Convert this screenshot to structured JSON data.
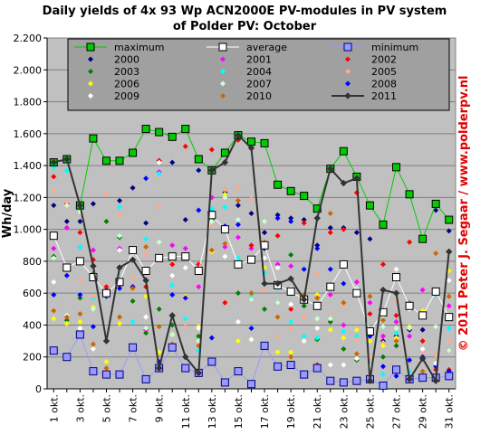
{
  "chart_data": {
    "type": "line",
    "title": "Daily yields of 4x 93 Wp ACN2000E PV-modules in PV system",
    "subtitle": "of Polder PV: October",
    "y_label": "Wh/day",
    "credit": "© 2011 Peter J. Segaar / www.polderpv.nl",
    "categories": [
      "1 okt.",
      null,
      "3 okt.",
      null,
      "5 okt.",
      null,
      "7 okt.",
      null,
      "9 okt.",
      null,
      "11 okt.",
      null,
      "13 okt.",
      null,
      "15 okt.",
      null,
      "17 okt.",
      null,
      "19 okt.",
      null,
      "21 okt.",
      null,
      "23 okt.",
      null,
      "25 okt.",
      null,
      "27 okt.",
      null,
      "29 okt.",
      null,
      "31 okt."
    ],
    "ylim": [
      0,
      2200
    ],
    "yticks": [
      0,
      {
        "value": 200,
        "label": "200"
      },
      {
        "value": 400,
        "label": "400"
      },
      {
        "value": 600,
        "label": "600"
      },
      {
        "value": 800,
        "label": "800"
      },
      {
        "value": 1000,
        "label": "1.000"
      },
      {
        "value": 1200,
        "label": "1.200"
      },
      {
        "value": 1400,
        "label": "1.400"
      },
      {
        "value": 1600,
        "label": "1.600"
      },
      {
        "value": 1800,
        "label": "1.800"
      },
      {
        "value": 2000,
        "label": "2.000"
      },
      {
        "value": 2200,
        "label": "2.200"
      }
    ],
    "grid": true,
    "plot_background": "#c0c0c0",
    "series": [
      {
        "name": "maximum",
        "color": "#00cc00",
        "line": true,
        "marker": "square",
        "values": [
          1420,
          1440,
          1150,
          1570,
          1430,
          1430,
          1480,
          1630,
          1610,
          1580,
          1630,
          1440,
          1370,
          1480,
          1590,
          1550,
          1540,
          1280,
          1240,
          1210,
          1130,
          1380,
          1490,
          1330,
          1150,
          1030,
          1390,
          1220,
          940,
          1160,
          1060
        ]
      },
      {
        "name": "average",
        "color": "#ffffff",
        "line": true,
        "marker": "square",
        "values": [
          960,
          760,
          800,
          700,
          600,
          670,
          870,
          740,
          820,
          830,
          830,
          740,
          1090,
          1000,
          780,
          810,
          900,
          650,
          610,
          560,
          520,
          640,
          780,
          600,
          360,
          480,
          700,
          520,
          460,
          610,
          450
        ]
      },
      {
        "name": "minimum",
        "color": "#9999ff",
        "line": true,
        "marker": "square",
        "values": [
          240,
          200,
          340,
          110,
          90,
          90,
          260,
          60,
          130,
          260,
          130,
          100,
          170,
          40,
          110,
          30,
          270,
          140,
          150,
          90,
          130,
          50,
          40,
          50,
          60,
          20,
          120,
          60,
          70,
          70,
          80
        ]
      },
      {
        "name": "2000",
        "color": "#000080",
        "line": false,
        "marker": "diamond",
        "values": [
          1150,
          1050,
          1050,
          1160,
          620,
          1180,
          1260,
          1040,
          1430,
          1420,
          1060,
          1370,
          1110,
          1230,
          1150,
          1100,
          980,
          1090,
          1070,
          1060,
          900,
          1010,
          1010,
          980,
          940,
          300,
          330,
          370,
          370,
          1120,
          990
        ]
      },
      {
        "name": "2001",
        "color": "#ff00ff",
        "line": false,
        "marker": "diamond",
        "values": [
          880,
          1010,
          890,
          870,
          600,
          880,
          880,
          370,
          1360,
          900,
          880,
          640,
          1200,
          890,
          950,
          880,
          880,
          780,
          770,
          520,
          510,
          590,
          400,
          670,
          540,
          330,
          420,
          330,
          620,
          610,
          520
        ]
      },
      {
        "name": "2002",
        "color": "#ff0000",
        "line": false,
        "marker": "diamond",
        "values": [
          1330,
          1160,
          980,
          810,
          640,
          650,
          640,
          640,
          1430,
          780,
          1520,
          780,
          1500,
          540,
          1560,
          900,
          880,
          960,
          500,
          1040,
          150,
          980,
          1000,
          1230,
          470,
          780,
          460,
          920,
          300,
          120,
          120
        ]
      },
      {
        "name": "2003",
        "color": "#008000",
        "line": false,
        "marker": "diamond",
        "values": [
          830,
          430,
          570,
          720,
          1050,
          950,
          550,
          350,
          500,
          400,
          200,
          330,
          1060,
          1250,
          600,
          560,
          500,
          540,
          840,
          520,
          310,
          420,
          250,
          180,
          80,
          200,
          270,
          530,
          480,
          600,
          240
        ]
      },
      {
        "name": "2004",
        "color": "#00ffff",
        "line": false,
        "marker": "diamond",
        "values": [
          1390,
          1370,
          890,
          570,
          590,
          1140,
          420,
          940,
          1350,
          650,
          440,
          240,
          1130,
          1140,
          820,
          590,
          730,
          630,
          420,
          330,
          320,
          450,
          360,
          330,
          200,
          90,
          350,
          110,
          460,
          590,
          380
        ]
      },
      {
        "name": "2005",
        "color": "#ffaa88",
        "line": false,
        "marker": "diamond",
        "values": [
          1240,
          1170,
          680,
          580,
          1220,
          1090,
          700,
          840,
          1140,
          810,
          390,
          380,
          1030,
          1250,
          1260,
          1190,
          620,
          330,
          380,
          450,
          720,
          460,
          520,
          310,
          200,
          290,
          550,
          380,
          230,
          210,
          300
        ]
      },
      {
        "name": "2006",
        "color": "#ffff00",
        "line": false,
        "marker": "diamond",
        "values": [
          440,
          410,
          420,
          510,
          170,
          410,
          630,
          580,
          230,
          340,
          580,
          390,
          860,
          1220,
          300,
          310,
          760,
          230,
          230,
          590,
          590,
          370,
          320,
          370,
          300,
          270,
          320,
          390,
          490,
          620,
          740
        ]
      },
      {
        "name": "2007",
        "color": "#ccffcc",
        "line": false,
        "marker": "diamond",
        "values": [
          820,
          1150,
          1110,
          500,
          600,
          960,
          850,
          380,
          920,
          340,
          840,
          300,
          1050,
          1200,
          1060,
          560,
          1050,
          540,
          630,
          580,
          440,
          440,
          660,
          630,
          140,
          390,
          380,
          380,
          460,
          390,
          240
        ]
      },
      {
        "name": "2008",
        "color": "#0000ff",
        "line": false,
        "marker": "diamond",
        "values": [
          590,
          710,
          590,
          390,
          580,
          630,
          640,
          1320,
          170,
          590,
          570,
          1120,
          320,
          1020,
          1030,
          380,
          880,
          1070,
          1050,
          750,
          880,
          750,
          660,
          590,
          330,
          140,
          80,
          180,
          200,
          140,
          110
        ]
      },
      {
        "name": "2009",
        "color": "#ffffff",
        "line": false,
        "marker": "diamond",
        "values": [
          670,
          460,
          380,
          250,
          590,
          870,
          820,
          450,
          1420,
          710,
          760,
          380,
          870,
          830,
          420,
          310,
          820,
          760,
          530,
          300,
          380,
          150,
          150,
          190,
          350,
          460,
          750,
          500,
          250,
          160,
          680
        ]
      },
      {
        "name": "2010",
        "color": "#cc6600",
        "line": false,
        "marker": "diamond",
        "values": [
          490,
          450,
          470,
          280,
          130,
          450,
          630,
          890,
          390,
          280,
          830,
          270,
          870,
          910,
          1180,
          600,
          920,
          450,
          200,
          590,
          570,
          1100,
          540,
          220,
          580,
          430,
          300,
          540,
          110,
          850,
          580
        ]
      },
      {
        "name": "2011",
        "color": "#333333",
        "line": true,
        "marker": "diamond",
        "values": [
          1420,
          1440,
          1150,
          770,
          300,
          760,
          810,
          680,
          130,
          460,
          200,
          100,
          1370,
          1420,
          1590,
          1510,
          660,
          660,
          690,
          560,
          1070,
          1380,
          1290,
          1320,
          50,
          620,
          600,
          60,
          190,
          50,
          860
        ]
      }
    ]
  }
}
